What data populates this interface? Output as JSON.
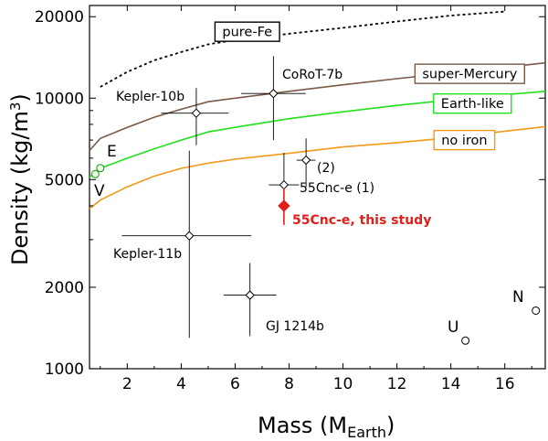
{
  "chart_data": {
    "type": "scatter",
    "title": "",
    "xlabel_main": "Mass (M",
    "xlabel_sub": "Earth",
    "xlabel_end": ")",
    "ylabel_main": "Density (kg/m",
    "ylabel_sup": "3",
    "ylabel_end": ")",
    "xlim": [
      0.6,
      17.5
    ],
    "ylim": [
      1000,
      22000
    ],
    "yscale": "log",
    "xticks": [
      2,
      4,
      6,
      8,
      10,
      12,
      14,
      16
    ],
    "xtick_labels": [
      "2",
      "4",
      "6",
      "8",
      "10",
      "12",
      "14",
      "16"
    ],
    "yticks": [
      1000,
      2000,
      5000,
      10000,
      20000
    ],
    "ytick_labels": [
      "1000",
      "2000",
      "5000",
      "10000",
      "20000"
    ],
    "curves": [
      {
        "name": "pure-Fe",
        "label": "pure-Fe",
        "color": "#000000",
        "dash": true,
        "border": "#000000",
        "points": [
          [
            1,
            11000
          ],
          [
            2,
            12500
          ],
          [
            3,
            13800
          ],
          [
            4,
            14800
          ],
          [
            5,
            15800
          ],
          [
            6,
            16400
          ],
          [
            8,
            17300
          ],
          [
            10,
            18200
          ],
          [
            12,
            19200
          ],
          [
            14,
            20200
          ],
          [
            16,
            20900
          ]
        ]
      },
      {
        "name": "super-Mercury",
        "label": "super-Mercury",
        "color": "#7a5a45",
        "dash": false,
        "border": "#7a5a45",
        "points": [
          [
            0.6,
            6400
          ],
          [
            1,
            7100
          ],
          [
            2,
            7800
          ],
          [
            3,
            8500
          ],
          [
            4,
            9100
          ],
          [
            5,
            9700
          ],
          [
            6,
            10000
          ],
          [
            8,
            10600
          ],
          [
            10,
            11200
          ],
          [
            12,
            11800
          ],
          [
            14,
            12400
          ],
          [
            16,
            13000
          ],
          [
            17.5,
            13500
          ]
        ]
      },
      {
        "name": "Earth-like",
        "label": "Earth-like",
        "color": "#22e01d",
        "dash": false,
        "border": "#22e01d",
        "points": [
          [
            0.6,
            5100
          ],
          [
            1,
            5500
          ],
          [
            2,
            6000
          ],
          [
            3,
            6500
          ],
          [
            4,
            7000
          ],
          [
            5,
            7500
          ],
          [
            6,
            7800
          ],
          [
            8,
            8400
          ],
          [
            10,
            8900
          ],
          [
            12,
            9400
          ],
          [
            14,
            9850
          ],
          [
            16,
            10300
          ],
          [
            17.5,
            10600
          ]
        ]
      },
      {
        "name": "no iron",
        "label": "no iron",
        "color": "#f09a1a",
        "dash": false,
        "border": "#f09a1a",
        "points": [
          [
            0.6,
            3900
          ],
          [
            1,
            4200
          ],
          [
            2,
            4700
          ],
          [
            3,
            5150
          ],
          [
            4,
            5500
          ],
          [
            5,
            5750
          ],
          [
            6,
            5950
          ],
          [
            8,
            6250
          ],
          [
            10,
            6600
          ],
          [
            12,
            6850
          ],
          [
            14,
            7150
          ],
          [
            16,
            7550
          ],
          [
            17.5,
            7850
          ]
        ]
      }
    ],
    "planets": [
      {
        "name": "Kepler-10b",
        "label": "Kepler-10b",
        "x": 4.56,
        "y": 8800,
        "xerr": [
          1.3,
          1.2
        ],
        "yerr": [
          2100,
          2100
        ]
      },
      {
        "name": "CoRoT-7b",
        "label": "CoRoT-7b",
        "x": 7.42,
        "y": 10400,
        "xerr": [
          1.2,
          1.2
        ],
        "yerr": [
          3400,
          3900
        ]
      },
      {
        "name": "55Cnc-e (2)",
        "label": "(2)",
        "x": 8.63,
        "y": 5900,
        "xerr": [
          0.35,
          0.35
        ],
        "yerr": [
          1200,
          1200
        ]
      },
      {
        "name": "55Cnc-e (1)",
        "label": "55Cnc-e (1)",
        "x": 7.81,
        "y": 4780,
        "xerr": [
          0.56,
          0.56
        ],
        "yerr": [
          1000,
          1500
        ]
      },
      {
        "name": "Kepler-11b",
        "label": "Kepler-11b",
        "x": 4.3,
        "y": 3100,
        "xerr": [
          2.5,
          2.3
        ],
        "yerr": [
          1800,
          3300
        ]
      },
      {
        "name": "GJ 1214b",
        "label": "GJ 1214b",
        "x": 6.55,
        "y": 1870,
        "xerr": [
          0.98,
          0.98
        ],
        "yerr": [
          550,
          590
        ]
      }
    ],
    "this_study": {
      "name": "55Cnc-e, this study",
      "label": "55Cnc-e, this study",
      "x": 7.81,
      "y": 4000,
      "xerr": [
        0.2,
        0.2
      ],
      "yerr": [
        600,
        650
      ],
      "color": "#e0201b"
    },
    "solar_system": [
      {
        "name": "Venus",
        "label": "V",
        "x": 0.815,
        "y": 5240
      },
      {
        "name": "Earth",
        "label": "E",
        "x": 1.0,
        "y": 5515
      },
      {
        "name": "Uranus",
        "label": "U",
        "x": 14.54,
        "y": 1270
      },
      {
        "name": "Neptune",
        "label": "N",
        "x": 17.15,
        "y": 1640
      }
    ]
  }
}
